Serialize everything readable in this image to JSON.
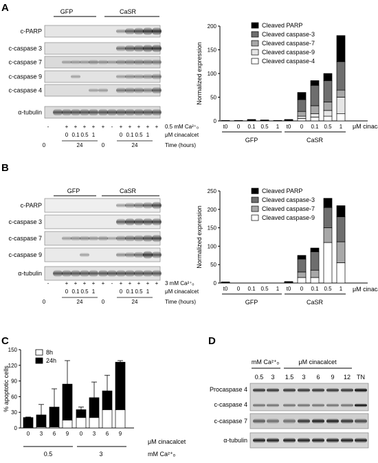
{
  "panel_labels": {
    "A": "A",
    "B": "B",
    "C": "C",
    "D": "D"
  },
  "blotA": {
    "groups": [
      "GFP",
      "CaSR"
    ],
    "rows": [
      "c-PARP",
      "c-caspase 3",
      "c-caspase 7",
      "c-caspase 9",
      "c-caspase 4",
      "α-tubulin"
    ],
    "ca_label": "0.5 mM Ca²⁺ₒ",
    "cina_label": "μM cinacalcet",
    "time_label": "Time (hours)",
    "ca_marks": [
      "-",
      "+",
      "+",
      "+",
      "+",
      "+",
      "-",
      "+",
      "+",
      "+",
      "+",
      "+"
    ],
    "cina_marks": [
      "0",
      "0.1",
      "0.5",
      "1",
      "0",
      "0.1",
      "0.5",
      "1"
    ],
    "time_marks": [
      "0",
      "24",
      "0",
      "24"
    ]
  },
  "blotB": {
    "groups": [
      "GFP",
      "CaSR"
    ],
    "rows": [
      "c-PARP",
      "c-caspase 3",
      "c-caspase 7",
      "c-caspase 9",
      "α-tubulin"
    ],
    "ca_label": "3 mM Ca²⁺ₒ",
    "cina_label": "μM cinacalcet",
    "time_label": "Time (hours)",
    "ca_marks": [
      "-",
      "+",
      "+",
      "+",
      "+",
      "+",
      "-",
      "+",
      "+",
      "+",
      "+",
      "+"
    ],
    "cina_marks": [
      "0",
      "0.1",
      "0.5",
      "1",
      "0",
      "0.1",
      "0.5",
      "1"
    ],
    "time_marks": [
      "0",
      "24",
      "0",
      "24"
    ]
  },
  "blotD": {
    "ca_label": "mM Ca²⁺ₒ",
    "cina_label": "μM cinacalcet",
    "lanes": [
      "0.5",
      "3",
      "1.5",
      "3",
      "6",
      "9",
      "12",
      "TN"
    ],
    "rows": [
      "Procaspase 4",
      "c-caspase 4",
      "c-caspase 7",
      "α-tubulin"
    ]
  },
  "chart_data": [
    {
      "type": "bar",
      "panel": "A",
      "stacked": true,
      "categories": [
        "t0",
        "0",
        "0.1",
        "0.5",
        "1",
        "t0",
        "0",
        "0.1",
        "0.5",
        "1"
      ],
      "groups": [
        "GFP",
        "CaSR"
      ],
      "xunit": "μM cinacalcet",
      "ylabel": "Normalized expression",
      "ylim": [
        0,
        200
      ],
      "yticks": [
        0,
        50,
        100,
        150,
        200
      ],
      "legend_position": "top-right",
      "series": [
        {
          "name": "Cleaved caspase-4",
          "color": "#ffffff",
          "values": [
            0,
            0,
            0,
            0,
            0,
            1,
            5,
            8,
            10,
            15
          ]
        },
        {
          "name": "Cleaved caspase-9",
          "color": "#e6e6e6",
          "values": [
            0,
            0,
            0,
            0,
            0,
            1,
            5,
            7,
            12,
            35
          ]
        },
        {
          "name": "Cleaved caspase-7",
          "color": "#a8a8a8",
          "values": [
            1,
            1,
            1,
            1,
            1,
            1,
            10,
            17,
            18,
            15
          ]
        },
        {
          "name": "Cleaved caspase-3",
          "color": "#6e6e6e",
          "values": [
            0,
            0,
            0,
            0,
            0,
            0,
            25,
            43,
            45,
            60
          ]
        },
        {
          "name": "Cleaved PARP",
          "color": "#000000",
          "values": [
            0,
            0,
            2,
            1,
            0,
            0,
            15,
            10,
            15,
            55
          ]
        }
      ]
    },
    {
      "type": "bar",
      "panel": "B",
      "stacked": true,
      "categories": [
        "t0",
        "0",
        "0.1",
        "0.5",
        "1",
        "t0",
        "0",
        "0.1",
        "0.5",
        "1"
      ],
      "groups": [
        "GFP",
        "CaSR"
      ],
      "xunit": "μM cinacalcet",
      "ylabel": "Normalized expression",
      "ylim": [
        0,
        250
      ],
      "yticks": [
        0,
        50,
        100,
        150,
        200,
        250
      ],
      "legend_position": "top-right",
      "series": [
        {
          "name": "Cleaved caspase-9",
          "color": "#ffffff",
          "values": [
            1,
            0,
            0,
            0,
            0,
            1,
            15,
            15,
            110,
            55
          ]
        },
        {
          "name": "Cleaved caspase-7",
          "color": "#a8a8a8",
          "values": [
            0,
            0,
            0,
            0,
            0,
            1,
            15,
            20,
            40,
            57
          ]
        },
        {
          "name": "Cleaved caspase-3",
          "color": "#6e6e6e",
          "values": [
            1,
            0,
            0,
            0,
            0,
            1,
            35,
            50,
            55,
            68
          ]
        },
        {
          "name": "Cleaved PARP",
          "color": "#000000",
          "values": [
            1,
            0,
            0,
            0,
            0,
            1,
            10,
            10,
            25,
            30
          ]
        }
      ]
    },
    {
      "type": "bar",
      "panel": "C",
      "stacked": true,
      "categories": [
        "0",
        "3",
        "6",
        "9",
        "0",
        "3",
        "6",
        "9"
      ],
      "groups": [
        "0.5",
        "3"
      ],
      "xunit": "μM cinacalcet",
      "group_unit": "mM Ca²⁺ₒ",
      "ylabel": "% apoptotic cells",
      "ylim": [
        0,
        150
      ],
      "yticks": [
        0,
        30,
        60,
        90,
        120,
        150
      ],
      "legend_position": "top-left",
      "series": [
        {
          "name": "8h",
          "color": "#ffffff",
          "values": [
            1,
            2,
            2,
            15,
            20,
            20,
            35,
            35
          ],
          "errors": [
            0,
            0,
            0,
            0,
            0,
            0,
            0,
            0
          ]
        },
        {
          "name": "24h",
          "color": "#000000",
          "values": [
            19,
            23,
            38,
            69,
            15,
            38,
            36,
            91
          ],
          "errors": [
            1,
            20,
            35,
            45,
            5,
            30,
            30,
            3
          ]
        }
      ]
    }
  ]
}
